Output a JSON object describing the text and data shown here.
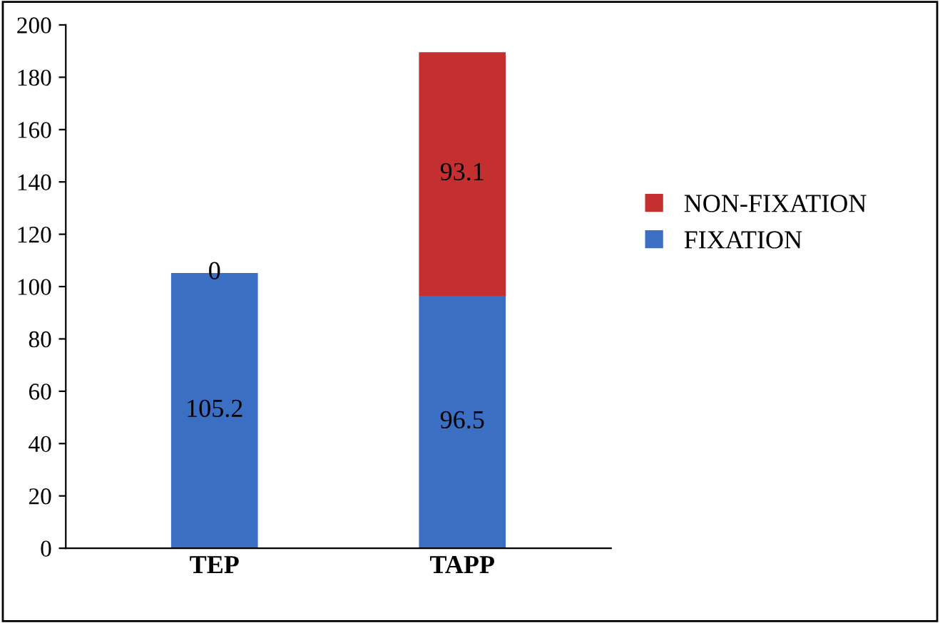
{
  "chart_data": {
    "type": "bar",
    "stacked": true,
    "categories": [
      "TEP",
      "TAPP"
    ],
    "series": [
      {
        "name": "FIXATION",
        "color": "#3a6fc4",
        "values": [
          105.2,
          96.5
        ]
      },
      {
        "name": "NON-FIXATION",
        "color": "#c43030",
        "values": [
          0,
          93.1
        ]
      }
    ],
    "ylim": [
      0,
      200
    ],
    "yticks": [
      0,
      20,
      40,
      60,
      80,
      100,
      120,
      140,
      160,
      180,
      200
    ],
    "data_labels": true,
    "legend": "right",
    "grid": false
  }
}
